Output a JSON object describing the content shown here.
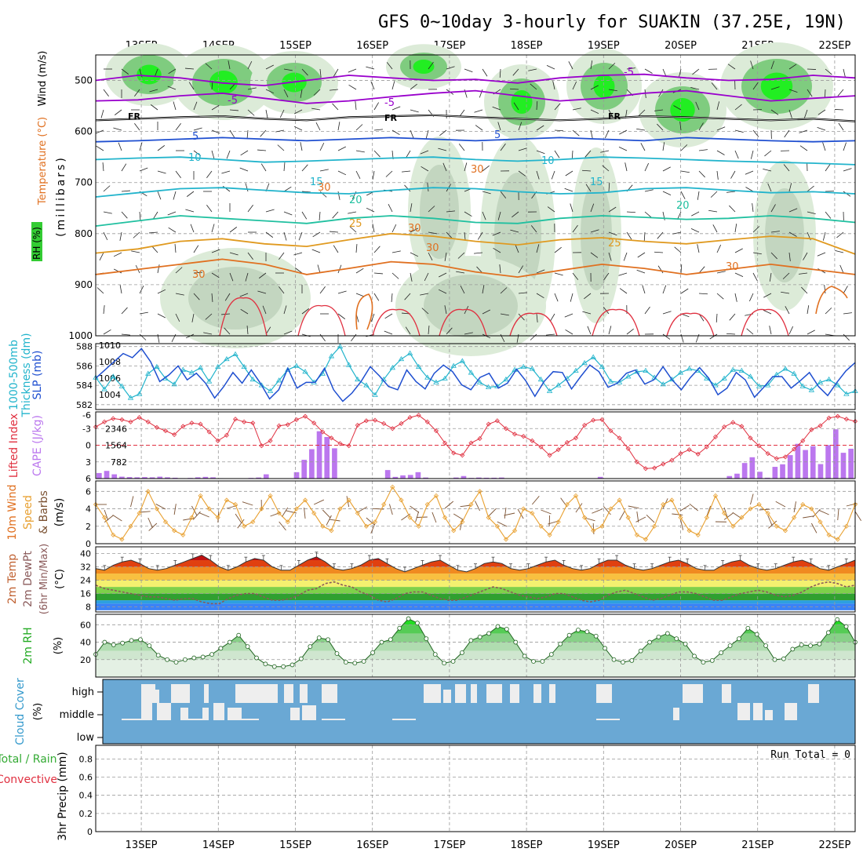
{
  "title": "GFS 0~10day 3-hourly for SUAKIN (37.25E, 19N)",
  "colors": {
    "purple": "#9900cc",
    "blue": "#1f4fd0",
    "cyan": "#22b4cc",
    "teal": "#20c0a0",
    "orange": "#e09a20",
    "darkorange": "#e07020",
    "red": "#e03040",
    "green": "#33cc33",
    "cape": "#bb77ee",
    "cloud_bg": "#6aa8d4",
    "cloud_fill": "#eeeeee",
    "wind_line": "#e8a030"
  },
  "chart_data": {
    "type": "meteogram",
    "days": [
      "13SEP",
      "14SEP",
      "15SEP",
      "16SEP",
      "17SEP",
      "18SEP",
      "19SEP",
      "20SEP",
      "21SEP",
      "22SEP"
    ],
    "panels": [
      {
        "id": "upper_air",
        "ylabel": [
          "Wind (m/s)",
          "Temperature (°C)",
          "RH (%)",
          "(millibars)"
        ],
        "yticks": [
          500,
          600,
          700,
          800,
          900,
          1000
        ],
        "ylim": [
          450,
          1000
        ],
        "contour_labels": [
          "-5",
          "-5",
          "-5",
          "FR",
          "FR",
          "FR",
          "5",
          "5",
          "10",
          "10",
          "15",
          "15",
          "20",
          "20",
          "25",
          "25",
          "30",
          "30",
          "30",
          "30",
          "30",
          "30"
        ],
        "isotherms": [
          {
            "label": "-5",
            "color": "purple",
            "p": [
              500,
              490,
              495,
              505,
              510,
              500,
              490,
              495,
              500,
              498,
              505,
              495,
              490,
              488,
              495,
              500,
              498,
              490,
              495
            ]
          },
          {
            "label": "-5b",
            "color": "purple",
            "p": [
              540,
              538,
              530,
              525,
              535,
              545,
              540,
              532,
              525,
              520,
              530,
              540,
              535,
              525,
              520,
              530,
              540,
              535,
              530
            ]
          },
          {
            "label": "FR",
            "color": "black",
            "p": [
              578,
              575,
              572,
              570,
              575,
              578,
              572,
              570,
              568,
              572,
              575,
              578,
              575,
              570,
              572,
              575,
              578,
              575,
              580
            ]
          },
          {
            "label": "5",
            "color": "blue",
            "p": [
              620,
              618,
              615,
              612,
              615,
              618,
              615,
              612,
              615,
              618,
              615,
              612,
              615,
              618,
              612,
              615,
              618,
              620,
              618
            ]
          },
          {
            "label": "10",
            "color": "cyan",
            "p": [
              655,
              652,
              650,
              655,
              660,
              658,
              655,
              652,
              650,
              655,
              658,
              655,
              650,
              652,
              655,
              658,
              660,
              662,
              665
            ]
          },
          {
            "label": "15",
            "color": "cyan",
            "p": [
              728,
              720,
              712,
              710,
              715,
              720,
              722,
              715,
              710,
              712,
              718,
              722,
              720,
              712,
              710,
              715,
              720,
              718,
              722
            ]
          },
          {
            "label": "20",
            "color": "teal",
            "p": [
              785,
              775,
              765,
              770,
              775,
              780,
              770,
              765,
              770,
              778,
              780,
              770,
              765,
              768,
              772,
              770,
              765,
              770,
              778
            ]
          },
          {
            "label": "25",
            "color": "orange",
            "p": [
              838,
              830,
              815,
              810,
              820,
              825,
              812,
              800,
              805,
              815,
              822,
              812,
              808,
              815,
              820,
              812,
              805,
              810,
              840
            ]
          },
          {
            "label": "30",
            "color": "darkorange",
            "p": [
              880,
              870,
              860,
              850,
              860,
              880,
              868,
              855,
              860,
              875,
              885,
              872,
              860,
              868,
              880,
              870,
              860,
              870,
              880
            ]
          }
        ]
      },
      {
        "id": "thickness_slp",
        "ylabel": [
          "1000-500mb",
          "Thickness (dm)",
          "SLP (mb)"
        ],
        "left_ticks": [
          582,
          584,
          586,
          588
        ],
        "right_ticks": [
          1004,
          1006,
          1008,
          1010
        ],
        "thickness": [
          584.8,
          583.6,
          584.9,
          583.9,
          582.7,
          583.1,
          585.2,
          585.9,
          584.7,
          584.1,
          585.6,
          585.3,
          585.8,
          584.4,
          585.9,
          586.7,
          587.2,
          585.9,
          584.6,
          584.0,
          583.4,
          584.5,
          585.6,
          586.0,
          585.4,
          584.3,
          585.2,
          587.0,
          588.0,
          586.1,
          584.6,
          584.0,
          583.0,
          584.6,
          585.8,
          586.7,
          587.3,
          585.9,
          584.8,
          584.3,
          584.7,
          586.0,
          586.5,
          585.3,
          584.3,
          583.8,
          583.9,
          584.6,
          585.6,
          585.9,
          585.7,
          584.6,
          583.4,
          584.0,
          584.7,
          585.5,
          586.3,
          586.9,
          585.9,
          584.4,
          584.3,
          584.9,
          585.4,
          585.5,
          584.8,
          584.1,
          584.6,
          585.3,
          585.7,
          585.5,
          584.7,
          584.0,
          584.7,
          585.6,
          585.5,
          584.9,
          583.9,
          584.0,
          585.1,
          585.7,
          585.2,
          583.9,
          583.5,
          584.3,
          584.6,
          584.0,
          583.1,
          583.4
        ],
        "slp": [
          1006,
          1007,
          1008,
          1009,
          1008.5,
          1009.6,
          1008,
          1005.6,
          1006.4,
          1007.5,
          1005.8,
          1006.6,
          1005.4,
          1003.6,
          1005,
          1006.7,
          1005.4,
          1007,
          1005.4,
          1003.5,
          1004.6,
          1007.2,
          1004.8,
          1005.5,
          1005.5,
          1007.2,
          1004.6,
          1003.2,
          1004.2,
          1005.6,
          1007.4,
          1006.3,
          1005,
          1004.6,
          1007,
          1005.6,
          1004.7,
          1006.6,
          1007.6,
          1006.8,
          1005.2,
          1004.6,
          1006.1,
          1006.6,
          1004.8,
          1005.4,
          1007.1,
          1005.7,
          1003.8,
          1005.6,
          1006.8,
          1006.7,
          1004.7,
          1006.2,
          1007.6,
          1006.8,
          1004.9,
          1005.4,
          1006.6,
          1007.0,
          1005.3,
          1005.8,
          1007.4,
          1005.8,
          1004.6,
          1006.1,
          1007.3,
          1006.0,
          1004.0,
          1004.8,
          1006.7,
          1005.8,
          1003.7,
          1004.9,
          1006.2,
          1006.2,
          1004.8,
          1005.7,
          1006.7,
          1005.0,
          1003.9,
          1005.5,
          1006.9,
          1007.9
        ]
      },
      {
        "id": "li_cape",
        "ylabel": [
          "Lifted Index",
          "CAPE (J/kg)"
        ],
        "left_ticks": [
          -3,
          0,
          3,
          6
        ],
        "left_tick_labels": [
          "-3",
          "0",
          "3",
          "6"
        ],
        "left_top": "-6",
        "right_ticks": [
          782,
          1564,
          2346
        ],
        "li": [
          -3.3,
          -4.2,
          -4.8,
          -4.6,
          -4.2,
          -5.0,
          -4.2,
          -3.2,
          -2.6,
          -1.9,
          -3.4,
          -4.0,
          -3.8,
          -2.4,
          -0.8,
          -1.8,
          -4.7,
          -4.2,
          -4.0,
          0.1,
          -0.8,
          -3.5,
          -3.7,
          -4.6,
          -5.2,
          -4.0,
          -2.4,
          -1.3,
          -0.3,
          0.1,
          -3.6,
          -4.4,
          -4.5,
          -3.9,
          -3.0,
          -3.9,
          -5.0,
          -5.4,
          -4.2,
          -2.6,
          -0.4,
          1.4,
          1.8,
          -0.4,
          -1.2,
          -3.8,
          -4.4,
          -3.0,
          -2.0,
          -1.6,
          -0.8,
          0.3,
          1.8,
          0.8,
          -0.5,
          -1.3,
          -3.6,
          -4.5,
          -4.6,
          -2.6,
          -1.3,
          0.6,
          3.0,
          4.2,
          4.1,
          3.4,
          2.7,
          1.5,
          0.8,
          1.6,
          0.3,
          -1.5,
          -3.3,
          -4.1,
          -3.4,
          -1.3,
          0.1,
          1.5,
          2.4,
          2.1,
          0.7,
          -0.8,
          -2.8,
          -3.5,
          -4.9,
          -5.2,
          -4.7,
          -4.3
        ],
        "cape": [
          260,
          360,
          200,
          90,
          70,
          60,
          70,
          60,
          90,
          60,
          40,
          20,
          30,
          60,
          80,
          60,
          20,
          10,
          0,
          10,
          30,
          50,
          200,
          0,
          0,
          0,
          300,
          880,
          1380,
          2220,
          1950,
          1420,
          0,
          0,
          0,
          0,
          0,
          0,
          400,
          80,
          150,
          170,
          300,
          50,
          0,
          0,
          0,
          50,
          120,
          30,
          50,
          40,
          40,
          50,
          0,
          0,
          0,
          0,
          0,
          0,
          0,
          0,
          0,
          0,
          0,
          0,
          80,
          0,
          0,
          0,
          0,
          0,
          0,
          0,
          0,
          0,
          0,
          0,
          0,
          0,
          0,
          0,
          0,
          120,
          230,
          730,
          1000,
          320,
          40,
          550,
          670,
          1100,
          1630,
          1340,
          1520,
          680,
          1570,
          2310,
          1210,
          1400
        ]
      },
      {
        "id": "wind10m",
        "ylabel": [
          "10m Wind",
          "Speed",
          "& Barbs",
          "(m/s)"
        ],
        "yticks": [
          0,
          2,
          4,
          6
        ],
        "speed": [
          4.5,
          3.0,
          1.0,
          0.5,
          2.0,
          3.5,
          6.0,
          4.0,
          2.5,
          1.5,
          1.0,
          3.0,
          5.5,
          4.0,
          3.0,
          5.0,
          4.5,
          2.0,
          2.5,
          4.0,
          5.5,
          3.5,
          2.5,
          4.0,
          5.0,
          3.5,
          2.0,
          1.5,
          4.0,
          5.0,
          3.5,
          2.0,
          2.5,
          4.5,
          6.5,
          5.0,
          3.0,
          2.0,
          4.5,
          5.5,
          3.0,
          1.5,
          2.5,
          4.5,
          6.0,
          3.0,
          2.0,
          0.5,
          1.5,
          4.0,
          3.5,
          2.0,
          1.0,
          2.5,
          4.5,
          5.5,
          3.0,
          1.5,
          2.0,
          4.0,
          5.0,
          3.0,
          1.0,
          0.5,
          2.0,
          4.5,
          5.0,
          3.0,
          1.5,
          1.0,
          3.0,
          5.5,
          3.5,
          2.0,
          3.0,
          4.0,
          4.5,
          3.5,
          2.0,
          1.5,
          3.0,
          4.5,
          4.0,
          2.5,
          1.0,
          0.5,
          2.0,
          4.5
        ]
      },
      {
        "id": "temp2m",
        "ylabel": [
          "2m Temp",
          "2m DewPt",
          "(6hr Min/Max)",
          "(°C)"
        ],
        "yticks": [
          8,
          16,
          24,
          32,
          40
        ],
        "temp": [
          31,
          30,
          33,
          35,
          36,
          34,
          31,
          30,
          31,
          33,
          35,
          37,
          39,
          36,
          32,
          30,
          32,
          35,
          37,
          36,
          32,
          30,
          30,
          33,
          36,
          38,
          35,
          31,
          30,
          31,
          33,
          36,
          37,
          34,
          31,
          29,
          31,
          33,
          35,
          36,
          33,
          30,
          29,
          31,
          34,
          35,
          34,
          31,
          30,
          31,
          33,
          35,
          36,
          33,
          31,
          30,
          31,
          34,
          36,
          36,
          33,
          31,
          30,
          31,
          33,
          35,
          36,
          34,
          31,
          30,
          30,
          33,
          35,
          36,
          33,
          31,
          30,
          31,
          33,
          35,
          36,
          34,
          31,
          30,
          32,
          34,
          36
        ],
        "dewpt": [
          21,
          19,
          18,
          17,
          16,
          15,
          14,
          14,
          13,
          12,
          13,
          13,
          11,
          10,
          10,
          13,
          15,
          16,
          16,
          14,
          12,
          12,
          13,
          15,
          18,
          19,
          22,
          23,
          21,
          20,
          17,
          15,
          12,
          11,
          13,
          16,
          17,
          17,
          15,
          13,
          12,
          12,
          14,
          16,
          18,
          20,
          19,
          17,
          15,
          14,
          13,
          14,
          16,
          16,
          14,
          12,
          11,
          12,
          15,
          17,
          18,
          16,
          14,
          12,
          13,
          15,
          17,
          17,
          16,
          14,
          12,
          12,
          14,
          16,
          17,
          18,
          17,
          15,
          14,
          15,
          17,
          20,
          22,
          23,
          22,
          20,
          21
        ],
        "bands": [
          {
            "from": 6,
            "to": 10,
            "color": "#3b82f6"
          },
          {
            "from": 10,
            "to": 12,
            "color": "#2ca0e0"
          },
          {
            "from": 12,
            "to": 16,
            "color": "#2fa030"
          },
          {
            "from": 16,
            "to": 20,
            "color": "#7ed04a"
          },
          {
            "from": 20,
            "to": 24,
            "color": "#f4f070"
          },
          {
            "from": 24,
            "to": 28,
            "color": "#f8c040"
          },
          {
            "from": 28,
            "to": 32,
            "color": "#f08a20"
          },
          {
            "from": 32,
            "to": 36,
            "color": "#e04010"
          },
          {
            "from": 36,
            "to": 40,
            "color": "#c01010"
          },
          {
            "from": 40,
            "to": 44,
            "color": "#804040"
          }
        ]
      },
      {
        "id": "rh2m",
        "ylabel": [
          "2m RH",
          "(%)"
        ],
        "yticks": [
          20,
          40,
          60
        ],
        "rh": [
          26,
          40,
          37,
          39,
          42,
          43,
          36,
          25,
          20,
          17,
          20,
          22,
          23,
          26,
          33,
          40,
          48,
          35,
          22,
          15,
          12,
          12,
          14,
          21,
          35,
          45,
          43,
          27,
          17,
          16,
          18,
          28,
          40,
          43,
          56,
          67,
          62,
          44,
          26,
          16,
          18,
          28,
          42,
          46,
          50,
          58,
          55,
          40,
          24,
          18,
          18,
          26,
          38,
          48,
          54,
          52,
          47,
          33,
          20,
          17,
          19,
          30,
          40,
          46,
          50,
          44,
          38,
          24,
          17,
          19,
          28,
          36,
          44,
          56,
          49,
          36,
          20,
          21,
          32,
          37,
          36,
          38,
          51,
          66,
          58,
          40
        ]
      },
      {
        "id": "cloud",
        "ylabel": [
          "Cloud Cover",
          "(%)"
        ],
        "ytick_labels": [
          "high",
          "middle",
          "low"
        ]
      },
      {
        "id": "precip",
        "ylabel": [
          "Total / Rain",
          "Convective",
          "3hr Precip (mm)"
        ],
        "yticks": [
          0,
          0.2,
          0.4,
          0.6,
          0.8
        ],
        "ytick_labels": [
          "0",
          "0.2",
          "0.4",
          "0.6",
          "0.8"
        ],
        "run_total": "Run Total = 0"
      }
    ]
  }
}
